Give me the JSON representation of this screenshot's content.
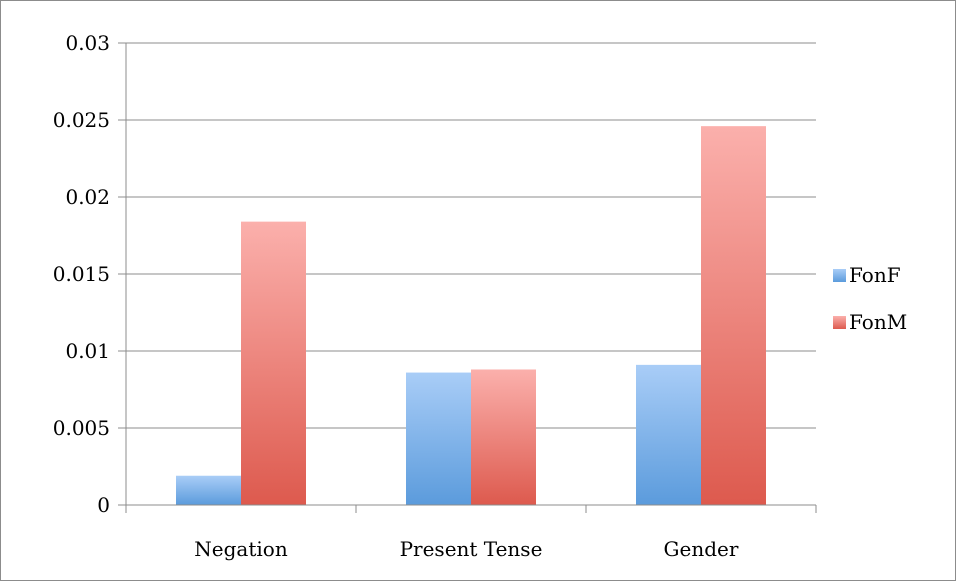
{
  "chart_data": {
    "type": "bar",
    "title": "",
    "xlabel": "",
    "ylabel": "",
    "categories": [
      "Negation",
      "Present Tense",
      "Gender"
    ],
    "series": [
      {
        "name": "FonF",
        "values": [
          0.0019,
          0.0086,
          0.0091
        ],
        "color_top": "#a9cdf7",
        "color_bottom": "#5b9bdc"
      },
      {
        "name": "FonM",
        "values": [
          0.0184,
          0.0088,
          0.0246
        ],
        "color_top": "#fbb0ac",
        "color_bottom": "#dd5a4e"
      }
    ],
    "ylim": [
      0,
      0.03
    ],
    "yticks": [
      "0",
      "0.005",
      "0.01",
      "0.015",
      "0.02",
      "0.025",
      "0.03"
    ],
    "grid": true,
    "legend_position": "right"
  }
}
